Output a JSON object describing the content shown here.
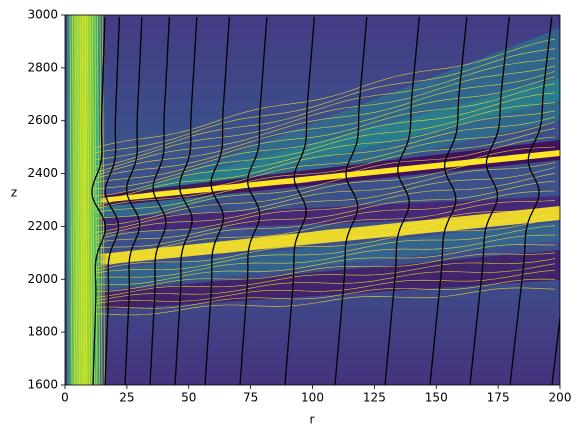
{
  "chart_data": {
    "type": "contour",
    "x_label": "r",
    "y_label": "z",
    "xlim": [
      0,
      200
    ],
    "ylim": [
      1600,
      3000
    ],
    "xticks": [
      0,
      25,
      50,
      75,
      100,
      125,
      150,
      175,
      200
    ],
    "yticks": [
      1600,
      1800,
      2000,
      2200,
      2400,
      2600,
      2800,
      3000
    ]
  }
}
